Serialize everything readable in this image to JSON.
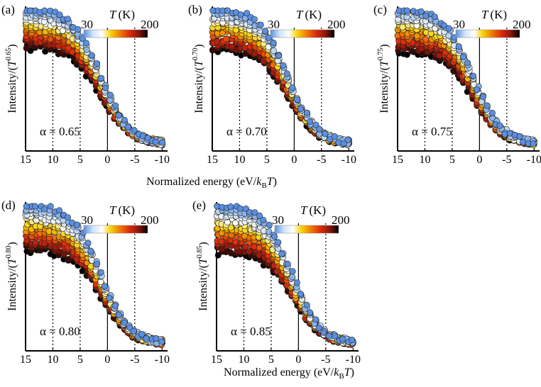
{
  "figure": {
    "xlabel_prefix": "Normalized energy (eV/",
    "xlabel_k": "k",
    "xlabel_sub": "B",
    "xlabel_T": "T",
    "xlabel_suffix": ")",
    "ylabel_prefix": "Intensity/(",
    "ylabel_T": "T",
    "ylabel_suffix": ")",
    "colorbar": {
      "min_label": "30",
      "max_label": "200",
      "var": "T",
      "unit": "(K)",
      "colors": [
        "#5b8fe0",
        "#cfe4f7",
        "#ffffff",
        "#f7d000",
        "#f07800",
        "#dc2a0c",
        "#8c1708",
        "#000000"
      ]
    }
  },
  "chart_data": [
    {
      "type": "scatter",
      "panel": "(a)",
      "alpha_label": "α = 0.65",
      "exponent": "0.65",
      "alpha": 0.65,
      "xlim": [
        15,
        -11
      ],
      "xticks": [
        "15",
        "10",
        "5",
        "0",
        "-5",
        "-10"
      ],
      "xtick_values": [
        15,
        10,
        5,
        0,
        -5,
        -10
      ],
      "vlines": [
        {
          "x": 10,
          "style": "dotted"
        },
        {
          "x": 5,
          "style": "dotted"
        },
        {
          "x": 0,
          "style": "solid"
        },
        {
          "x": -5,
          "style": "dotted"
        }
      ],
      "temperature_range_K": [
        30,
        200
      ]
    },
    {
      "type": "scatter",
      "panel": "(b)",
      "alpha_label": "α = 0.70",
      "exponent": "0.70",
      "alpha": 0.7,
      "xlim": [
        15,
        -11
      ],
      "xticks": [
        "15",
        "10",
        "5",
        "0",
        "-5",
        "-10"
      ],
      "xtick_values": [
        15,
        10,
        5,
        0,
        -5,
        -10
      ],
      "vlines": [
        {
          "x": 10,
          "style": "dotted"
        },
        {
          "x": 5,
          "style": "dotted"
        },
        {
          "x": 0,
          "style": "solid"
        },
        {
          "x": -5,
          "style": "dotted"
        }
      ],
      "temperature_range_K": [
        30,
        200
      ]
    },
    {
      "type": "scatter",
      "panel": "(c)",
      "alpha_label": "α = 0.75",
      "exponent": "0.75",
      "alpha": 0.75,
      "xlim": [
        15,
        -11
      ],
      "xticks": [
        "15",
        "10",
        "5",
        "0",
        "-5",
        "-10"
      ],
      "xtick_values": [
        15,
        10,
        5,
        0,
        -5,
        -10
      ],
      "vlines": [
        {
          "x": 10,
          "style": "dotted"
        },
        {
          "x": 5,
          "style": "dotted"
        },
        {
          "x": 0,
          "style": "solid"
        },
        {
          "x": -5,
          "style": "dotted"
        }
      ],
      "temperature_range_K": [
        30,
        200
      ]
    },
    {
      "type": "scatter",
      "panel": "(d)",
      "alpha_label": "α = 0.80",
      "exponent": "0.80",
      "alpha": 0.8,
      "xlim": [
        15,
        -11
      ],
      "xticks": [
        "15",
        "10",
        "5",
        "0",
        "-5",
        "-10"
      ],
      "xtick_values": [
        15,
        10,
        5,
        0,
        -5,
        -10
      ],
      "vlines": [
        {
          "x": 10,
          "style": "dotted"
        },
        {
          "x": 5,
          "style": "dotted"
        },
        {
          "x": 0,
          "style": "solid"
        },
        {
          "x": -5,
          "style": "dotted"
        }
      ],
      "temperature_range_K": [
        30,
        200
      ]
    },
    {
      "type": "scatter",
      "panel": "(e)",
      "alpha_label": "α = 0.85",
      "exponent": "0.85",
      "alpha": 0.85,
      "xlim": [
        15,
        -11
      ],
      "xticks": [
        "15",
        "10",
        "5",
        "0",
        "-5",
        "-10"
      ],
      "xtick_values": [
        15,
        10,
        5,
        0,
        -5,
        -10
      ],
      "vlines": [
        {
          "x": 10,
          "style": "dotted"
        },
        {
          "x": 5,
          "style": "dotted"
        },
        {
          "x": 0,
          "style": "solid"
        },
        {
          "x": -5,
          "style": "dotted"
        }
      ],
      "temperature_range_K": [
        30,
        200
      ]
    }
  ]
}
